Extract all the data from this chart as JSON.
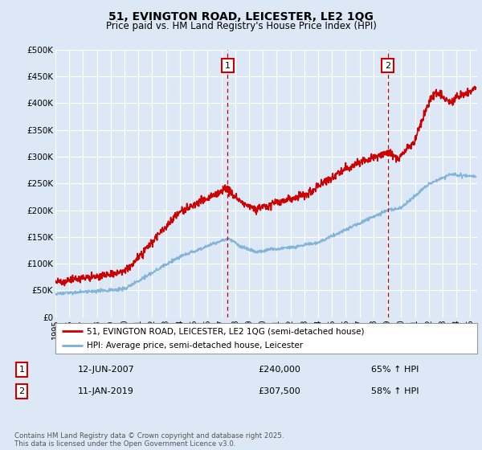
{
  "title": "51, EVINGTON ROAD, LEICESTER, LE2 1QG",
  "subtitle": "Price paid vs. HM Land Registry's House Price Index (HPI)",
  "ylabel_ticks": [
    "£0",
    "£50K",
    "£100K",
    "£150K",
    "£200K",
    "£250K",
    "£300K",
    "£350K",
    "£400K",
    "£450K",
    "£500K"
  ],
  "ytick_values": [
    0,
    50000,
    100000,
    150000,
    200000,
    250000,
    300000,
    350000,
    400000,
    450000,
    500000
  ],
  "ylim": [
    0,
    500000
  ],
  "xlim_start": 1995.0,
  "xlim_end": 2025.5,
  "fig_bg_color": "#dce8f5",
  "plot_bg_color": "#dce8f5",
  "grid_color": "#ffffff",
  "red_line_color": "#cc0000",
  "blue_line_color": "#7aafd4",
  "marker1_x": 2007.44,
  "marker1_y": 240000,
  "marker1_label": "1",
  "marker1_date": "12-JUN-2007",
  "marker1_price": "£240,000",
  "marker1_hpi": "65% ↑ HPI",
  "marker2_x": 2019.03,
  "marker2_y": 307500,
  "marker2_label": "2",
  "marker2_date": "11-JAN-2019",
  "marker2_price": "£307,500",
  "marker2_hpi": "58% ↑ HPI",
  "legend_red": "51, EVINGTON ROAD, LEICESTER, LE2 1QG (semi-detached house)",
  "legend_blue": "HPI: Average price, semi-detached house, Leicester",
  "footnote": "Contains HM Land Registry data © Crown copyright and database right 2025.\nThis data is licensed under the Open Government Licence v3.0.",
  "xtick_years": [
    1995,
    1996,
    1997,
    1998,
    1999,
    2000,
    2001,
    2002,
    2003,
    2004,
    2005,
    2006,
    2007,
    2008,
    2009,
    2010,
    2011,
    2012,
    2013,
    2014,
    2015,
    2016,
    2017,
    2018,
    2019,
    2020,
    2021,
    2022,
    2023,
    2024,
    2025
  ]
}
